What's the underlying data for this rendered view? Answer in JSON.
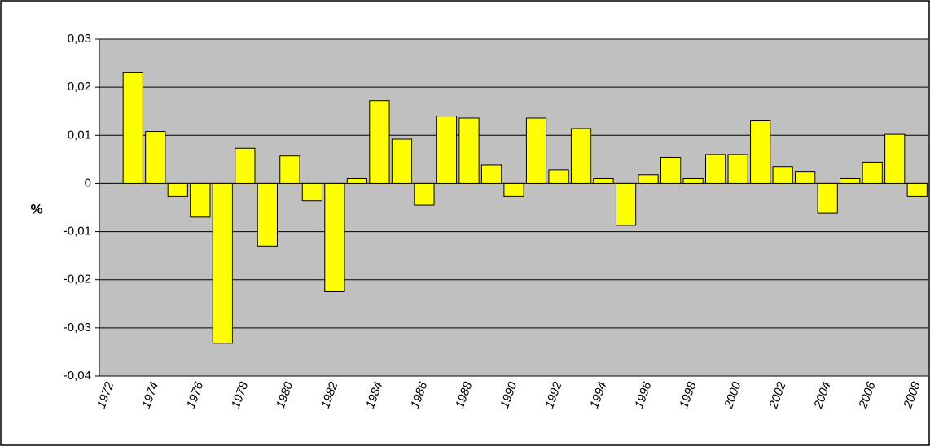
{
  "chart_data": {
    "type": "bar",
    "y_label": "%",
    "categories": [
      "1972",
      null,
      "1974",
      null,
      "1976",
      null,
      "1978",
      null,
      "1980",
      null,
      "1982",
      null,
      "1984",
      null,
      "1986",
      null,
      "1988",
      null,
      "1990",
      null,
      "1992",
      null,
      "1994",
      null,
      "1996",
      null,
      "1998",
      null,
      "2000",
      null,
      "2002",
      null,
      "2004",
      null,
      "2006",
      null,
      "2008"
    ],
    "values": [
      null,
      0.023,
      0.0108,
      -0.0027,
      -0.007,
      -0.0332,
      0.0073,
      -0.013,
      0.0057,
      -0.0036,
      -0.0225,
      0.001,
      0.0172,
      0.0092,
      -0.0045,
      0.014,
      0.0136,
      0.0038,
      -0.0027,
      0.0136,
      0.0028,
      0.0114,
      0.001,
      -0.0087,
      0.0018,
      0.0054,
      0.001,
      0.006,
      0.006,
      0.013,
      0.0035,
      0.0025,
      -0.0062,
      0.001,
      0.0044,
      0.0102,
      -0.0027
    ],
    "color": "#ffff00",
    "ylim": [
      -0.04,
      0.03
    ],
    "yticks": [
      {
        "value": -0.04,
        "label": "-0,04"
      },
      {
        "value": -0.03,
        "label": "-0,03"
      },
      {
        "value": -0.02,
        "label": "-0,02"
      },
      {
        "value": -0.01,
        "label": "-0,01"
      },
      0,
      {
        "value": 0.01,
        "label": "0,01"
      },
      {
        "value": 0.02,
        "label": "0,02"
      },
      {
        "value": 0.03,
        "label": "0,03"
      }
    ],
    "grid": true
  }
}
